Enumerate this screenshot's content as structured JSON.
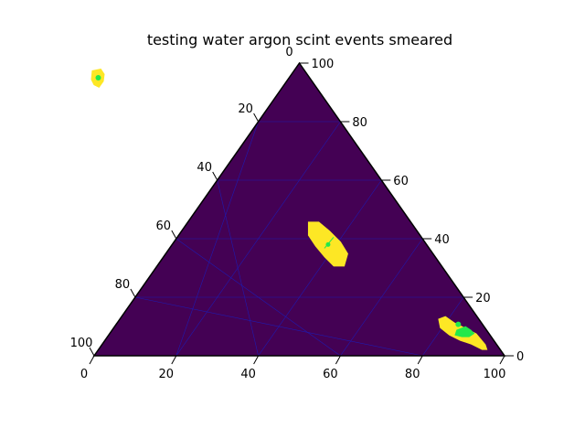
{
  "chart_data": {
    "type": "heatmap",
    "subtype": "ternary",
    "title": "testing water argon scint events smeared",
    "axes": {
      "bottom": {
        "ticks": [
          0,
          20,
          40,
          60,
          80,
          100
        ]
      },
      "right": {
        "ticks": [
          0,
          20,
          40,
          60,
          80,
          100
        ]
      },
      "left": {
        "ticks": [
          20,
          40,
          60,
          80,
          100
        ]
      },
      "top_corner_label": "0"
    },
    "grid": true,
    "colormap": "viridis",
    "background_color": "#440154",
    "grid_color": "#1f1ab0",
    "high_color": "#fde725",
    "peak_color": "#23e84a",
    "hotspots": [
      {
        "bottom": 48.5,
        "right": 95.0,
        "left": 2.5,
        "peak": true
      },
      {
        "bottom": 76.0,
        "right": 38.0,
        "left": 0.0,
        "peak": true
      },
      {
        "bottom": 94.0,
        "right": 7.0,
        "left": 0.0,
        "peak": true
      }
    ]
  }
}
